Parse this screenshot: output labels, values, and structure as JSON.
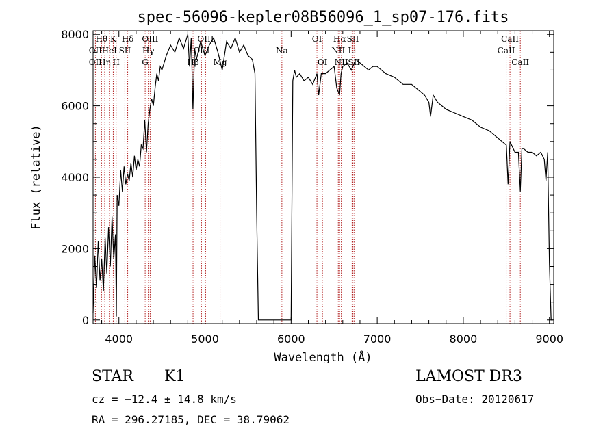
{
  "chart_data": {
    "type": "line",
    "title": "spec-56096-kepler08B56096_1_sp07-176.fits",
    "xlabel": "Wavelength (Å)",
    "ylabel": "Flux (relative)",
    "xlim": [
      3700,
      9050
    ],
    "ylim": [
      -100,
      8100
    ],
    "xticks": [
      4000,
      5000,
      6000,
      7000,
      8000,
      9000
    ],
    "xtick_labels": [
      "4000",
      "5000",
      "6000",
      "7000",
      "8000",
      "9000"
    ],
    "yticks": [
      0,
      2000,
      4000,
      6000,
      8000
    ],
    "ytick_labels": [
      "0",
      "2000",
      "4000",
      "6000",
      "8000"
    ],
    "grid": false,
    "line_color": "#000000",
    "marker_color": "#b22222",
    "series": [
      {
        "x": [
          3700,
          3720,
          3740,
          3760,
          3780,
          3800,
          3820,
          3840,
          3860,
          3880,
          3900,
          3920,
          3940,
          3960,
          3970,
          3980,
          4000,
          4020,
          4040,
          4060,
          4080,
          4100,
          4120,
          4140,
          4160,
          4180,
          4200,
          4220,
          4240,
          4260,
          4280,
          4300,
          4320,
          4340,
          4360,
          4380,
          4400,
          4420,
          4440,
          4460,
          4480,
          4500,
          4550,
          4600,
          4650,
          4700,
          4750,
          4800,
          4820,
          4840,
          4860,
          4880,
          4900,
          4950,
          5000,
          5050,
          5100,
          5150,
          5200,
          5250,
          5300,
          5350,
          5400,
          5450,
          5500,
          5550,
          5580,
          5600,
          5620,
          5640,
          5700,
          5800,
          5900,
          5980,
          6000,
          6020,
          6040,
          6060,
          6100,
          6150,
          6200,
          6250,
          6300,
          6320,
          6350,
          6400,
          6450,
          6500,
          6530,
          6563,
          6580,
          6600,
          6650,
          6700,
          6750,
          6800,
          6850,
          6900,
          6950,
          7000,
          7100,
          7200,
          7300,
          7400,
          7500,
          7550,
          7600,
          7620,
          7650,
          7700,
          7800,
          7900,
          8000,
          8100,
          8200,
          8300,
          8400,
          8450,
          8500,
          8520,
          8542,
          8560,
          8600,
          8640,
          8662,
          8680,
          8700,
          8750,
          8800,
          8850,
          8900,
          8940,
          8960,
          8980,
          9000,
          9020,
          9040
        ],
        "y": [
          200,
          1800,
          900,
          2200,
          1100,
          1700,
          800,
          2300,
          1300,
          2600,
          1500,
          2900,
          1700,
          2400,
          100,
          3500,
          3200,
          4200,
          3600,
          4300,
          3800,
          4100,
          3900,
          4400,
          4000,
          4600,
          4200,
          4500,
          4300,
          4900,
          4800,
          5600,
          4700,
          5500,
          5900,
          6200,
          6000,
          6500,
          6900,
          6700,
          7100,
          7000,
          7400,
          7700,
          7500,
          7900,
          7600,
          8000,
          7100,
          7900,
          5900,
          7600,
          7300,
          7800,
          7400,
          7700,
          7900,
          7500,
          7000,
          7800,
          7600,
          7900,
          7500,
          7700,
          7400,
          7300,
          6900,
          3000,
          0,
          0,
          0,
          0,
          0,
          0,
          0,
          6700,
          7000,
          6800,
          6900,
          6700,
          6800,
          6600,
          6900,
          6300,
          6900,
          6900,
          7000,
          7100,
          6500,
          6300,
          6900,
          7100,
          7200,
          7000,
          7300,
          7200,
          7100,
          7000,
          7100,
          7100,
          6900,
          6800,
          6600,
          6600,
          6400,
          6300,
          6100,
          5700,
          6300,
          6100,
          5900,
          5800,
          5700,
          5600,
          5400,
          5300,
          5100,
          5000,
          4900,
          3800,
          5000,
          4900,
          4700,
          4700,
          3600,
          4800,
          4800,
          4700,
          4700,
          4600,
          4700,
          4500,
          3900,
          4700,
          1600,
          0,
          0
        ]
      }
    ],
    "line_markers": [
      {
        "label": "Hθ",
        "wl": 3798,
        "row": 0
      },
      {
        "label": "OII",
        "wl": 3727,
        "row": 1
      },
      {
        "label": "OII",
        "wl": 3727,
        "row": 2
      },
      {
        "label": "K",
        "wl": 3934,
        "row": 0
      },
      {
        "label": "HeI",
        "wl": 3889,
        "row": 1
      },
      {
        "label": "Hη",
        "wl": 3835,
        "row": 2
      },
      {
        "label": "Hδ",
        "wl": 4102,
        "row": 0
      },
      {
        "label": "SII",
        "wl": 4069,
        "row": 1
      },
      {
        "label": "H",
        "wl": 3968,
        "row": 2
      },
      {
        "label": "OIII",
        "wl": 4363,
        "row": 0
      },
      {
        "label": "Hγ",
        "wl": 4341,
        "row": 1
      },
      {
        "label": "G",
        "wl": 4305,
        "row": 2
      },
      {
        "label": "OIII",
        "wl": 5007,
        "row": 0
      },
      {
        "label": "OIII",
        "wl": 4959,
        "row": 1
      },
      {
        "label": "Hβ",
        "wl": 4861,
        "row": 2
      },
      {
        "label": "Mg",
        "wl": 5175,
        "row": 2
      },
      {
        "label": "Na",
        "wl": 5893,
        "row": 1
      },
      {
        "label": "OI",
        "wl": 6300,
        "row": 0
      },
      {
        "label": "OI",
        "wl": 6364,
        "row": 2
      },
      {
        "label": "Hα",
        "wl": 6563,
        "row": 0
      },
      {
        "label": "SII",
        "wl": 6717,
        "row": 0
      },
      {
        "label": "NII",
        "wl": 6548,
        "row": 1
      },
      {
        "label": "Li",
        "wl": 6708,
        "row": 1
      },
      {
        "label": "NII",
        "wl": 6583,
        "row": 2
      },
      {
        "label": "SII",
        "wl": 6731,
        "row": 2
      },
      {
        "label": "CaII",
        "wl": 8542,
        "row": 0
      },
      {
        "label": "CaII",
        "wl": 8498,
        "row": 1
      },
      {
        "label": "CaII",
        "wl": 8662,
        "row": 2
      }
    ]
  },
  "info": {
    "object_type": "STAR",
    "subclass": "K1",
    "survey": "LAMOST DR3",
    "redshift": "cz = −12.4 ± 14.8 km/s",
    "obs_date": "Obs−Date: 20120617",
    "coords": "RA = 296.27185, DEC =  38.79062"
  }
}
